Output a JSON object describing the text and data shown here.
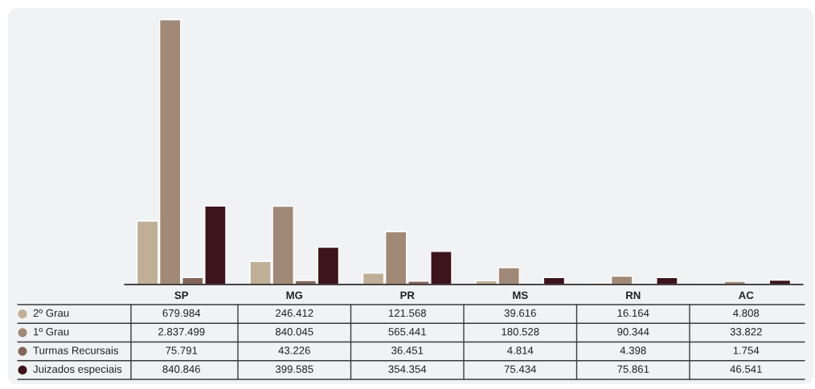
{
  "chart_data": {
    "type": "bar",
    "categories": [
      "SP",
      "MG",
      "PR",
      "MS",
      "RN",
      "AC"
    ],
    "tick_labels": "x",
    "legend": "bottom left",
    "series": [
      {
        "name": "2º Grau",
        "color": "#bfaf96",
        "values": [
          679984,
          246412,
          121568,
          39616,
          16164,
          4808
        ],
        "value_labels": [
          "679.984",
          "246.412",
          "121.568",
          "39.616",
          "16.164",
          "4.808"
        ]
      },
      {
        "name": "1º Grau",
        "color": "#a18977",
        "values": [
          2837499,
          840045,
          565441,
          180528,
          90344,
          33822
        ],
        "value_labels": [
          "2.837.499",
          "840.045",
          "565.441",
          "180.528",
          "90.344",
          "33.822"
        ]
      },
      {
        "name": "Turmas Recursais",
        "color": "#84675a",
        "values": [
          75791,
          43226,
          36451,
          4814,
          4398,
          1754
        ],
        "value_labels": [
          "75.791",
          "43.226",
          "36.451",
          "4.814",
          "4.398",
          "1.754"
        ]
      },
      {
        "name": "Juizados especiais",
        "color": "#3d141b",
        "values": [
          840846,
          399585,
          354354,
          75434,
          75861,
          46541
        ],
        "value_labels": [
          "840.846",
          "399.585",
          "354.354",
          "75.434",
          "75.861",
          "46.541"
        ]
      }
    ]
  }
}
